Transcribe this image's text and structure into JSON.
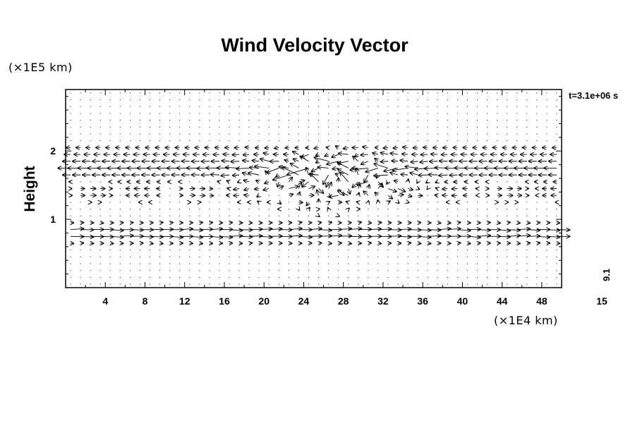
{
  "chart_data": {
    "type": "vector_field",
    "title": "Wind Velocity Vector",
    "ylabel": "Height",
    "x_unit": "(×1E4 km)",
    "y_unit": "(×1E5 km)",
    "time_label": "t=3.1e+06 s",
    "ref_vector_label": "9.1",
    "ref_vector_value": 15,
    "ref_vector_value_label": "15",
    "xlim": [
      0,
      50
    ],
    "ylim": [
      0,
      2.9
    ],
    "x_ticks": [
      4,
      8,
      12,
      16,
      20,
      24,
      28,
      32,
      36,
      40,
      44,
      48
    ],
    "x_tick_labels": [
      "4",
      "8",
      "12",
      "16",
      "20",
      "24",
      "28",
      "32",
      "36",
      "40",
      "44",
      "48"
    ],
    "y_ticks": [
      1,
      2
    ],
    "y_tick_labels": [
      "1",
      "2"
    ],
    "bands": [
      {
        "y": 0.8,
        "direction": "east",
        "strength": "strong"
      },
      {
        "y": 1.4,
        "direction": "mixed",
        "strength": "turbulent"
      },
      {
        "y": 1.7,
        "direction": "west",
        "strength": "strong"
      },
      {
        "y": 2.0,
        "direction": "west",
        "strength": "moderate"
      }
    ]
  }
}
